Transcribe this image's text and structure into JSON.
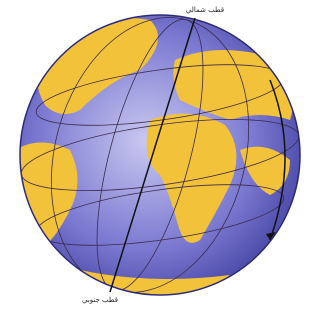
{
  "labels": {
    "north_pole": "قطب شمالي",
    "south_pole": "قطب جنوبي"
  }
}
